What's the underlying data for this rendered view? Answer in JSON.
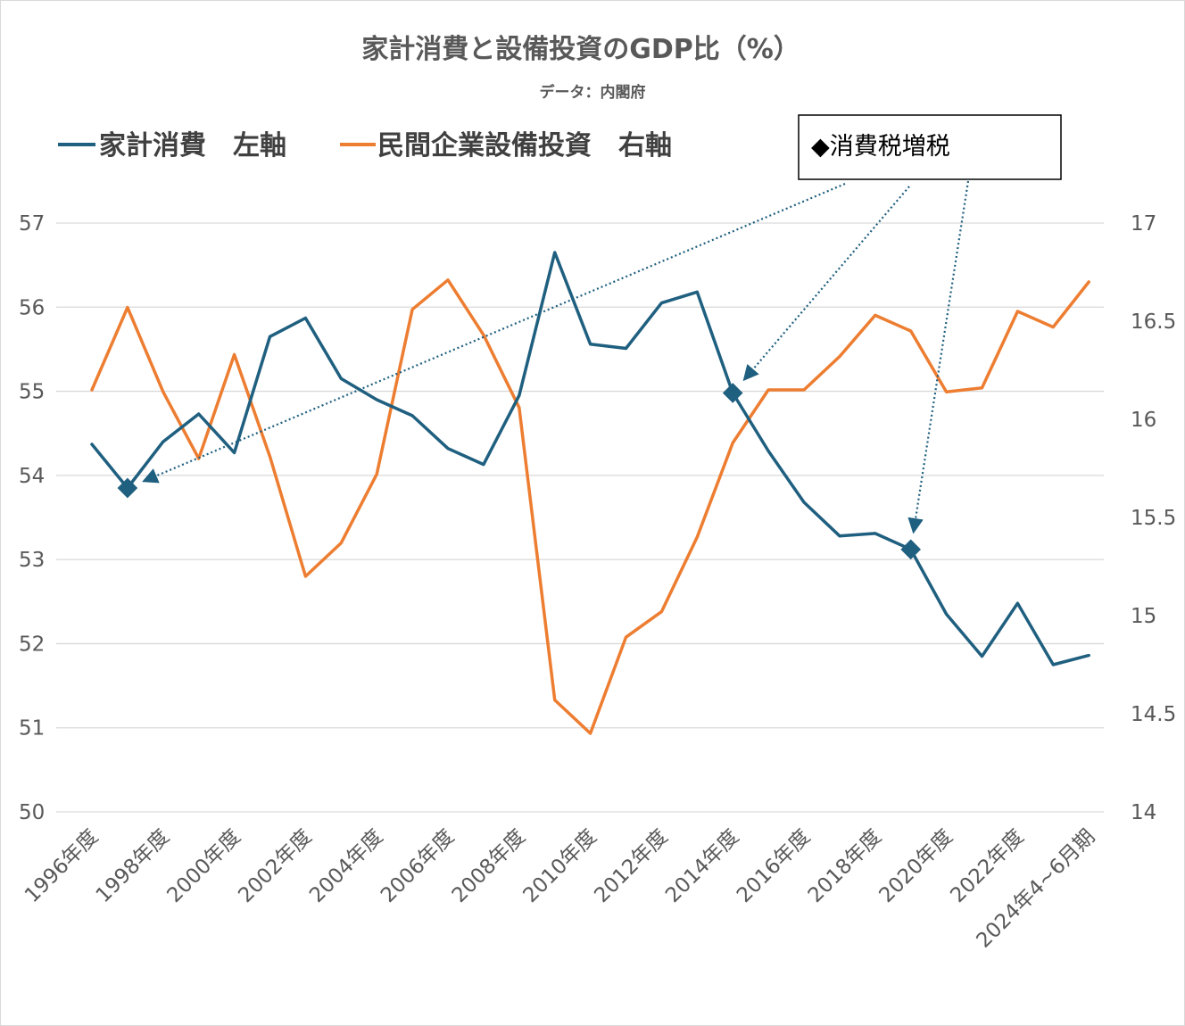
{
  "chart_data": {
    "type": "line",
    "title": "家計消費と設備投資のGDP比（%）",
    "subtitle": "データ：内閣府",
    "categories": [
      "1996年度",
      "1997年度",
      "1998年度",
      "1999年度",
      "2000年度",
      "2001年度",
      "2002年度",
      "2003年度",
      "2004年度",
      "2005年度",
      "2006年度",
      "2007年度",
      "2008年度",
      "2009年度",
      "2010年度",
      "2011年度",
      "2012年度",
      "2013年度",
      "2014年度",
      "2015年度",
      "2016年度",
      "2017年度",
      "2018年度",
      "2019年度",
      "2020年度",
      "2021年度",
      "2022年度",
      "2023年度",
      "2024年4~6月期"
    ],
    "xtick_labels": [
      "1996年度",
      "",
      "1998年度",
      "",
      "2000年度",
      "",
      "2002年度",
      "",
      "2004年度",
      "",
      "2006年度",
      "",
      "2008年度",
      "",
      "2010年度",
      "",
      "2012年度",
      "",
      "2014年度",
      "",
      "2016年度",
      "",
      "2018年度",
      "",
      "2020年度",
      "",
      "2022年度",
      "",
      "2024年4~6月期"
    ],
    "series": [
      {
        "name": "家計消費　左軸",
        "axis": "left",
        "color": "#1f5f7f",
        "values": [
          54.37,
          53.85,
          54.4,
          54.73,
          54.27,
          55.65,
          55.87,
          55.15,
          54.9,
          54.71,
          54.32,
          54.13,
          54.95,
          56.65,
          55.56,
          55.51,
          56.05,
          56.18,
          54.98,
          54.29,
          53.68,
          53.28,
          53.31,
          53.12,
          52.35,
          51.85,
          52.48,
          51.75,
          51.86
        ]
      },
      {
        "name": "民間企業設備投資　右軸",
        "axis": "right",
        "color": "#ed7d31",
        "values": [
          16.15,
          16.57,
          16.14,
          15.8,
          16.33,
          15.81,
          15.2,
          15.37,
          15.72,
          16.56,
          16.71,
          16.43,
          16.06,
          14.57,
          14.4,
          14.89,
          15.02,
          15.4,
          15.88,
          16.15,
          16.15,
          16.32,
          16.53,
          16.45,
          16.14,
          16.16,
          16.55,
          16.47,
          16.7
        ]
      }
    ],
    "markers": {
      "label": "◆消費税増税",
      "series": "家計消費　左軸",
      "categories": [
        "1997年度",
        "2014年度",
        "2019年度"
      ]
    },
    "y_left": {
      "range": [
        50,
        57
      ],
      "ticks": [
        "50",
        "51",
        "52",
        "53",
        "54",
        "55",
        "56",
        "57"
      ]
    },
    "y_right": {
      "range": [
        14,
        17
      ],
      "ticks": [
        "14",
        "14.5",
        "15",
        "15.5",
        "16",
        "16.5",
        "17"
      ]
    },
    "grid": "horizontal",
    "legend_position": "top-left"
  }
}
